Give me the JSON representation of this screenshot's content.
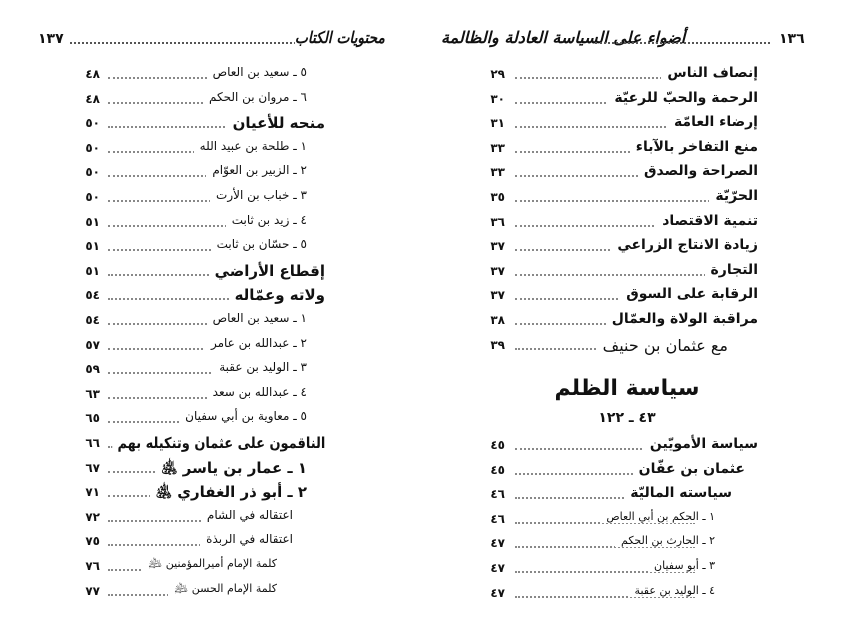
{
  "left_page": {
    "page_number": "١٣٧",
    "running_title": "محتويات الكتاب",
    "entries": [
      {
        "title": "٥ ـ سعيد بن العاص",
        "page": "٤٨",
        "level": 2
      },
      {
        "title": "٦ ـ مروان بن الحكم",
        "page": "٤٨",
        "level": 2
      },
      {
        "title": "منحه للأعيان",
        "page": "٥٠",
        "level": 1
      },
      {
        "title": "١ ـ طلحة بن عبيد الله",
        "page": "٥٠",
        "level": 2
      },
      {
        "title": "٢ ـ الزبير بن العوّام",
        "page": "٥٠",
        "level": 2
      },
      {
        "title": "٣ ـ خباب بن الأرت",
        "page": "٥٠",
        "level": 2
      },
      {
        "title": "٤ ـ زيد بن ثابت",
        "page": "٥١",
        "level": 2
      },
      {
        "title": "٥ ـ حسّان بن ثابت",
        "page": "٥١",
        "level": 2
      },
      {
        "title": "إقطاع الأراضي",
        "page": "٥١",
        "level": 1
      },
      {
        "title": "ولاته وعمّاله",
        "page": "٥٤",
        "level": 1
      },
      {
        "title": "١ ـ سعيد بن العاص",
        "page": "٥٤",
        "level": 2
      },
      {
        "title": "٢ ـ عبدالله بن عامر",
        "page": "٥٧",
        "level": 2
      },
      {
        "title": "٣ ـ الوليد بن عقبة",
        "page": "٥٩",
        "level": 2
      },
      {
        "title": "٤ ـ عبدالله بن سعد",
        "page": "٦٣",
        "level": 2
      },
      {
        "title": "٥ ـ معاوية بن أبي سفيان",
        "page": "٦٥",
        "level": 2
      },
      {
        "title": "الناقمون على عثمان وتنكيله بهم",
        "page": "٦٦",
        "level": 1
      },
      {
        "title": "١ ـ عمار بن ياسر ﵁",
        "page": "٦٧",
        "level": 2,
        "bold": true
      },
      {
        "title": "٢ ـ أبو ذر الغفاري ﵁",
        "page": "٧١",
        "level": 2,
        "bold": true
      },
      {
        "title": "اعتقاله في الشام",
        "page": "٧٢",
        "level": 3
      },
      {
        "title": "اعتقاله في الربذة",
        "page": "٧٥",
        "level": 3
      },
      {
        "title": "كلمة الإمام أميرالمؤمنين ﵇",
        "page": "٧٦",
        "level": 4
      },
      {
        "title": "كلمة الإمام الحسن ﵇",
        "page": "٧٧",
        "level": 4
      }
    ]
  },
  "right_page": {
    "page_number": "١٣٦",
    "running_title": "أضواء على السياسة العادلة والظالمة",
    "entries_top": [
      {
        "title": "إنصاف الناس",
        "page": "٢٩",
        "level": 1
      },
      {
        "title": "الرحمة والحبّ للرعيّة",
        "page": "٣٠",
        "level": 1
      },
      {
        "title": "إرضاء العامّة",
        "page": "٣١",
        "level": 1
      },
      {
        "title": "منع التفاخر بالآباء",
        "page": "٣٣",
        "level": 1
      },
      {
        "title": "الصراحة والصدق",
        "page": "٣٣",
        "level": 1
      },
      {
        "title": "الحرّيّة",
        "page": "٣٥",
        "level": 1
      },
      {
        "title": "تنمية الاقتصاد",
        "page": "٣٦",
        "level": 1
      },
      {
        "title": "زيادة الانتاج الزراعي",
        "page": "٣٧",
        "level": 1
      },
      {
        "title": "التجارة",
        "page": "٣٧",
        "level": 1
      },
      {
        "title": "الرقابة على السوق",
        "page": "٣٧",
        "level": 1
      },
      {
        "title": "مراقبة الولاة والعمّال",
        "page": "٣٨",
        "level": 1
      },
      {
        "title": "مع عثمان بن حنيف",
        "page": "٣٩",
        "level": 5
      }
    ],
    "section": {
      "title": "سياسة الظلم",
      "range": "٤٣ ـ ١٢٢"
    },
    "entries_bottom": [
      {
        "title": "سياسة الأمويّين",
        "page": "٤٥",
        "level": 1
      },
      {
        "title": "عثمان بن عفّان",
        "page": "٤٥",
        "level": 2
      },
      {
        "title": "سياسته الماليّة",
        "page": "٤٦",
        "level": 3
      },
      {
        "title": "١ ـ الحكم بن أبي العاص",
        "page": "٤٦",
        "level": 4
      },
      {
        "title": "٢ ـ الحارث بن الحكم",
        "page": "٤٧",
        "level": 4
      },
      {
        "title": "٣ ـ أبو سفيان",
        "page": "٤٧",
        "level": 4
      },
      {
        "title": "٤ ـ الوليد بن عقبة",
        "page": "٤٧",
        "level": 4
      }
    ]
  }
}
